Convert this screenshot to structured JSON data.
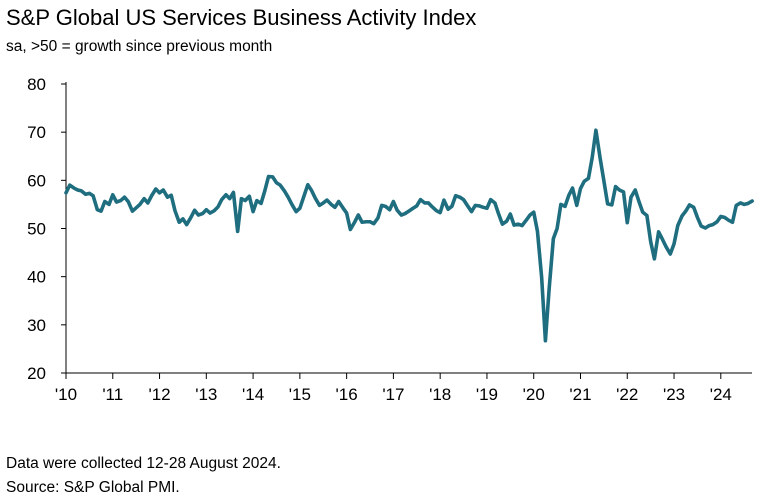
{
  "title": "S&P Global US Services Business Activity Index",
  "subtitle": "sa, >50 = growth since previous month",
  "footnotes": {
    "collection": "Data were collected 12-28 August 2024.",
    "source": "Source: S&P Global PMI."
  },
  "colors": {
    "line": "#1f6e80",
    "axis": "#000000",
    "text": "#000000"
  },
  "chart_data": {
    "type": "line",
    "title": "S&P Global US Services Business Activity Index",
    "subtitle": "sa, >50 = growth since previous month",
    "xlabel": "",
    "ylabel": "",
    "ylim": [
      20,
      80
    ],
    "yticks": [
      20,
      30,
      40,
      50,
      60,
      70,
      80
    ],
    "x_start": 2010,
    "x_end": 2024.667,
    "xtick_positions": [
      2010,
      2011,
      2012,
      2013,
      2014,
      2015,
      2016,
      2017,
      2018,
      2019,
      2020,
      2021,
      2022,
      2023,
      2024
    ],
    "xtick_labels": [
      "'10",
      "'11",
      "'12",
      "'13",
      "'14",
      "'15",
      "'16",
      "'17",
      "'18",
      "'19",
      "'20",
      "'21",
      "'22",
      "'23",
      "'24"
    ],
    "grid": false,
    "legend": "none",
    "series": [
      {
        "name": "S&P Global US Services Business Activity Index",
        "points": [
          [
            2010.0,
            57.4
          ],
          [
            2010.08,
            59.0
          ],
          [
            2010.17,
            58.4
          ],
          [
            2010.25,
            58.0
          ],
          [
            2010.33,
            57.8
          ],
          [
            2010.42,
            57.1
          ],
          [
            2010.5,
            57.3
          ],
          [
            2010.58,
            56.8
          ],
          [
            2010.67,
            53.9
          ],
          [
            2010.75,
            53.6
          ],
          [
            2010.83,
            55.6
          ],
          [
            2010.92,
            55.0
          ],
          [
            2011.0,
            57.0
          ],
          [
            2011.08,
            55.5
          ],
          [
            2011.17,
            55.8
          ],
          [
            2011.25,
            56.5
          ],
          [
            2011.33,
            55.6
          ],
          [
            2011.42,
            53.6
          ],
          [
            2011.5,
            54.3
          ],
          [
            2011.58,
            55.0
          ],
          [
            2011.67,
            56.2
          ],
          [
            2011.75,
            55.3
          ],
          [
            2011.83,
            56.8
          ],
          [
            2011.92,
            58.2
          ],
          [
            2012.0,
            57.4
          ],
          [
            2012.08,
            58.0
          ],
          [
            2012.17,
            56.5
          ],
          [
            2012.25,
            56.9
          ],
          [
            2012.33,
            53.7
          ],
          [
            2012.42,
            51.3
          ],
          [
            2012.5,
            52.0
          ],
          [
            2012.58,
            50.8
          ],
          [
            2012.67,
            52.3
          ],
          [
            2012.75,
            53.8
          ],
          [
            2012.83,
            52.8
          ],
          [
            2012.92,
            53.1
          ],
          [
            2013.0,
            53.9
          ],
          [
            2013.08,
            53.2
          ],
          [
            2013.17,
            53.7
          ],
          [
            2013.25,
            54.5
          ],
          [
            2013.33,
            56.0
          ],
          [
            2013.42,
            57.0
          ],
          [
            2013.5,
            56.2
          ],
          [
            2013.58,
            57.5
          ],
          [
            2013.67,
            49.4
          ],
          [
            2013.75,
            56.2
          ],
          [
            2013.83,
            55.8
          ],
          [
            2013.92,
            56.7
          ],
          [
            2014.0,
            53.5
          ],
          [
            2014.08,
            55.8
          ],
          [
            2014.17,
            55.2
          ],
          [
            2014.25,
            57.8
          ],
          [
            2014.33,
            60.8
          ],
          [
            2014.42,
            60.7
          ],
          [
            2014.5,
            59.5
          ],
          [
            2014.58,
            59.0
          ],
          [
            2014.67,
            57.8
          ],
          [
            2014.75,
            56.5
          ],
          [
            2014.83,
            55.0
          ],
          [
            2014.92,
            53.5
          ],
          [
            2015.0,
            54.2
          ],
          [
            2015.08,
            56.5
          ],
          [
            2015.17,
            59.1
          ],
          [
            2015.25,
            57.9
          ],
          [
            2015.33,
            56.3
          ],
          [
            2015.42,
            54.8
          ],
          [
            2015.5,
            55.3
          ],
          [
            2015.58,
            55.9
          ],
          [
            2015.67,
            55.0
          ],
          [
            2015.75,
            54.4
          ],
          [
            2015.83,
            55.6
          ],
          [
            2015.92,
            54.3
          ],
          [
            2016.0,
            53.2
          ],
          [
            2016.08,
            49.8
          ],
          [
            2016.17,
            51.3
          ],
          [
            2016.25,
            52.8
          ],
          [
            2016.33,
            51.3
          ],
          [
            2016.42,
            51.4
          ],
          [
            2016.5,
            51.4
          ],
          [
            2016.58,
            51.0
          ],
          [
            2016.67,
            52.2
          ],
          [
            2016.75,
            54.8
          ],
          [
            2016.83,
            54.6
          ],
          [
            2016.92,
            53.9
          ],
          [
            2017.0,
            55.6
          ],
          [
            2017.08,
            53.8
          ],
          [
            2017.17,
            52.8
          ],
          [
            2017.25,
            53.1
          ],
          [
            2017.33,
            53.6
          ],
          [
            2017.42,
            54.2
          ],
          [
            2017.5,
            54.7
          ],
          [
            2017.58,
            56.0
          ],
          [
            2017.67,
            55.3
          ],
          [
            2017.75,
            55.3
          ],
          [
            2017.83,
            54.5
          ],
          [
            2017.92,
            53.7
          ],
          [
            2018.0,
            53.3
          ],
          [
            2018.08,
            55.9
          ],
          [
            2018.17,
            54.0
          ],
          [
            2018.25,
            54.6
          ],
          [
            2018.33,
            56.8
          ],
          [
            2018.42,
            56.5
          ],
          [
            2018.5,
            56.0
          ],
          [
            2018.58,
            54.8
          ],
          [
            2018.67,
            53.5
          ],
          [
            2018.75,
            54.8
          ],
          [
            2018.83,
            54.7
          ],
          [
            2018.92,
            54.4
          ],
          [
            2019.0,
            54.2
          ],
          [
            2019.08,
            56.0
          ],
          [
            2019.17,
            55.3
          ],
          [
            2019.25,
            53.0
          ],
          [
            2019.33,
            50.9
          ],
          [
            2019.42,
            51.5
          ],
          [
            2019.5,
            53.0
          ],
          [
            2019.58,
            50.7
          ],
          [
            2019.67,
            50.9
          ],
          [
            2019.75,
            50.6
          ],
          [
            2019.83,
            51.6
          ],
          [
            2019.92,
            52.8
          ],
          [
            2020.0,
            53.4
          ],
          [
            2020.08,
            49.4
          ],
          [
            2020.17,
            39.8
          ],
          [
            2020.25,
            26.7
          ],
          [
            2020.33,
            37.5
          ],
          [
            2020.42,
            47.9
          ],
          [
            2020.5,
            50.0
          ],
          [
            2020.58,
            55.0
          ],
          [
            2020.67,
            54.6
          ],
          [
            2020.75,
            56.9
          ],
          [
            2020.83,
            58.4
          ],
          [
            2020.92,
            54.8
          ],
          [
            2021.0,
            58.3
          ],
          [
            2021.08,
            59.8
          ],
          [
            2021.17,
            60.4
          ],
          [
            2021.25,
            64.7
          ],
          [
            2021.33,
            70.4
          ],
          [
            2021.42,
            64.6
          ],
          [
            2021.5,
            59.9
          ],
          [
            2021.58,
            55.1
          ],
          [
            2021.67,
            54.9
          ],
          [
            2021.75,
            58.7
          ],
          [
            2021.83,
            58.0
          ],
          [
            2021.92,
            57.6
          ],
          [
            2022.0,
            51.2
          ],
          [
            2022.08,
            56.5
          ],
          [
            2022.17,
            58.0
          ],
          [
            2022.25,
            55.6
          ],
          [
            2022.33,
            53.4
          ],
          [
            2022.42,
            52.7
          ],
          [
            2022.5,
            47.3
          ],
          [
            2022.58,
            43.7
          ],
          [
            2022.67,
            49.3
          ],
          [
            2022.75,
            47.8
          ],
          [
            2022.83,
            46.2
          ],
          [
            2022.92,
            44.7
          ],
          [
            2023.0,
            46.8
          ],
          [
            2023.08,
            50.6
          ],
          [
            2023.17,
            52.6
          ],
          [
            2023.25,
            53.6
          ],
          [
            2023.33,
            54.9
          ],
          [
            2023.42,
            54.4
          ],
          [
            2023.5,
            52.3
          ],
          [
            2023.58,
            50.5
          ],
          [
            2023.67,
            50.1
          ],
          [
            2023.75,
            50.6
          ],
          [
            2023.83,
            50.8
          ],
          [
            2023.92,
            51.4
          ],
          [
            2024.0,
            52.5
          ],
          [
            2024.08,
            52.3
          ],
          [
            2024.17,
            51.7
          ],
          [
            2024.25,
            51.3
          ],
          [
            2024.33,
            54.8
          ],
          [
            2024.42,
            55.3
          ],
          [
            2024.5,
            55.0
          ],
          [
            2024.58,
            55.2
          ],
          [
            2024.67,
            55.7
          ]
        ]
      }
    ]
  }
}
